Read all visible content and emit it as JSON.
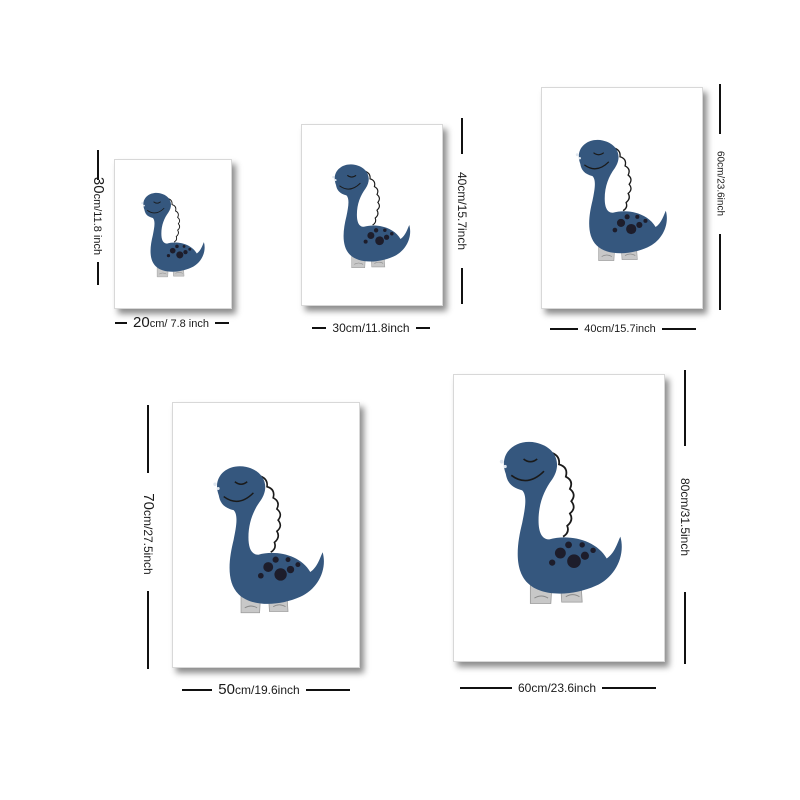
{
  "prints": [
    {
      "id": "p1",
      "width_label": {
        "num": "20",
        "unit": "cm/ 7.8 inch"
      },
      "height_label": {
        "num": "30",
        "unit": "cm/11.8 inch"
      }
    },
    {
      "id": "p2",
      "width_label": {
        "num": "30cm/11.8inch",
        "unit": ""
      },
      "height_label": {
        "num": "40cm/15.7inch",
        "unit": ""
      }
    },
    {
      "id": "p3",
      "width_label": {
        "num": "40cm/15.7inch",
        "unit": ""
      },
      "height_label": {
        "num": "60cm/23.6inch",
        "unit": ""
      }
    },
    {
      "id": "p4",
      "width_label": {
        "num": "50",
        "unit": "cm/19.6inch"
      },
      "height_label": {
        "num": "70",
        "unit": "cm/27.5inch"
      }
    },
    {
      "id": "p5",
      "width_label": {
        "num": "60cm/23.6inch",
        "unit": ""
      },
      "height_label": {
        "num": "80cm/31.5inch",
        "unit": ""
      }
    }
  ],
  "colors": {
    "dino_body": "#35577e",
    "dino_legs": "#c8c8c8",
    "spots": "#1d1d2b",
    "outline": "#1a1a1a"
  },
  "icons": {
    "artwork": "dinosaur-illustration"
  }
}
